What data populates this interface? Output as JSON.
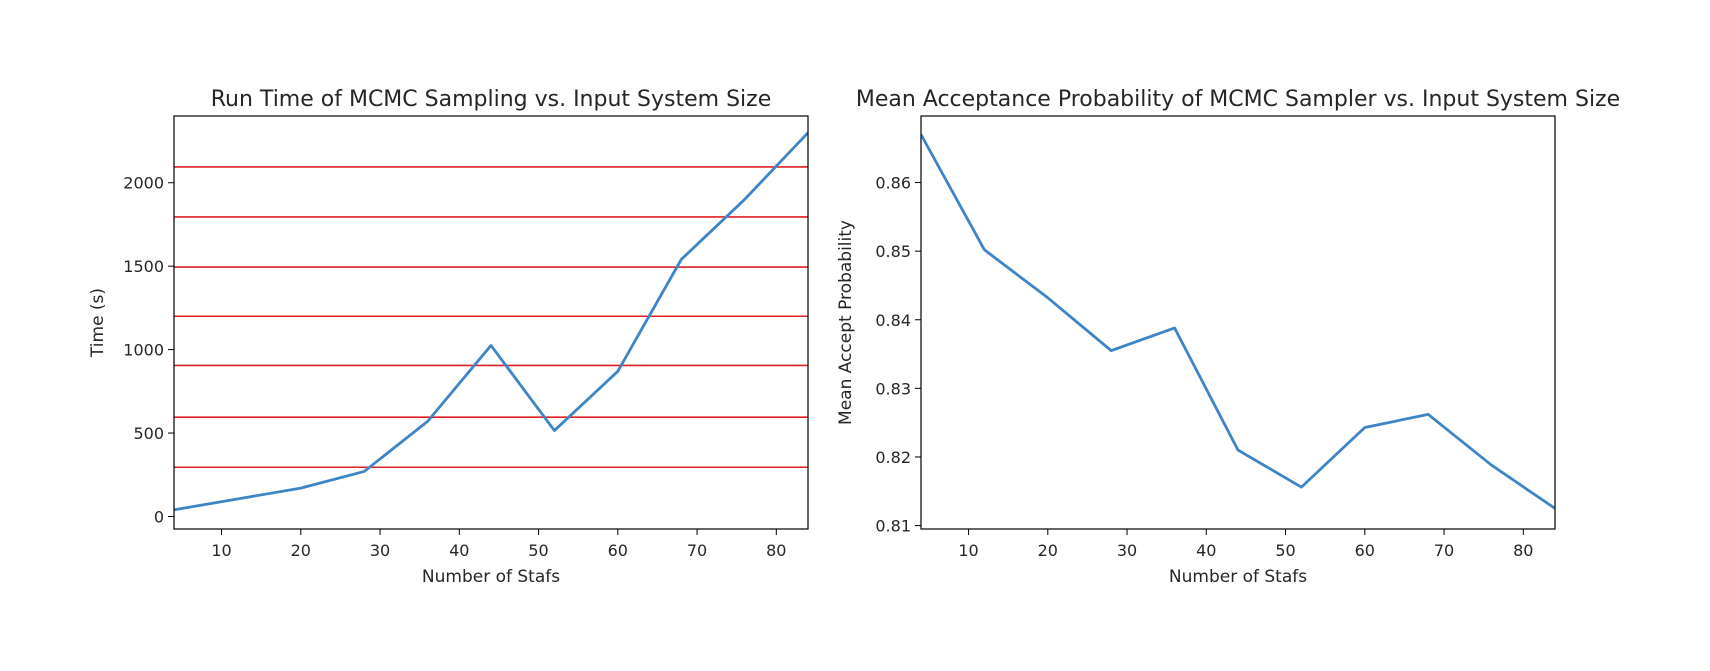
{
  "chart_data": [
    {
      "type": "line",
      "title": "Run Time of MCMC Sampling vs. Input System Size",
      "xlabel": "Number of Stafs",
      "ylabel": "Time (s)",
      "xlim": [
        4,
        84
      ],
      "ylim": [
        -75,
        2400
      ],
      "xticks": [
        10,
        20,
        30,
        40,
        50,
        60,
        70,
        80
      ],
      "yticks": [
        0,
        500,
        1000,
        1500,
        2000
      ],
      "grid": false,
      "series": [
        {
          "color": "#3d85c6",
          "x": [
            4,
            12,
            20,
            28,
            36,
            44,
            52,
            60,
            68,
            76,
            84
          ],
          "y": [
            40,
            105,
            170,
            270,
            570,
            1025,
            515,
            870,
            1540,
            1900,
            2300
          ]
        }
      ],
      "hlines": {
        "color": "#e02020",
        "y": [
          295,
          595,
          905,
          1200,
          1495,
          1795,
          2095
        ]
      }
    },
    {
      "type": "line",
      "title": "Mean Acceptance Probability of MCMC Sampler vs. Input System Size",
      "xlabel": "Number of Stafs",
      "ylabel": "Mean Accept Probability",
      "xlim": [
        4,
        84
      ],
      "ylim": [
        0.8095,
        0.8697
      ],
      "xticks": [
        10,
        20,
        30,
        40,
        50,
        60,
        70,
        80
      ],
      "yticks": [
        0.81,
        0.82,
        0.83,
        0.84,
        0.85,
        0.86
      ],
      "grid": false,
      "series": [
        {
          "color": "#3d85c6",
          "x": [
            4,
            12,
            20,
            28,
            36,
            44,
            52,
            60,
            68,
            76,
            84
          ],
          "y": [
            0.867,
            0.8502,
            0.8432,
            0.8355,
            0.8388,
            0.821,
            0.8156,
            0.8243,
            0.8262,
            0.8188,
            0.8125
          ]
        }
      ]
    }
  ]
}
